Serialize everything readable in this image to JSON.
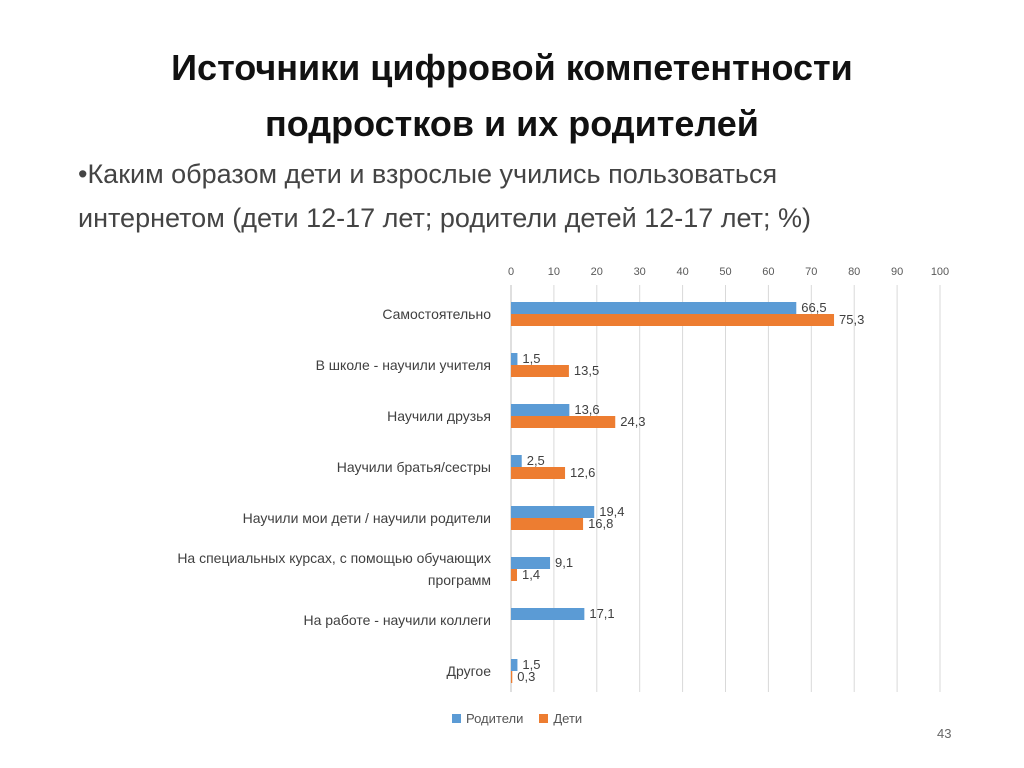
{
  "slide": {
    "title_line1": "Источники цифровой компетентности",
    "title_line2": "подростков и их родителей",
    "bullet_line1": "•Каким образом дети и взрослые учились пользоваться",
    "bullet_line2": "интернетом (дети 12-17 лет; родители детей 12-17 лет; %)",
    "page_number": "43"
  },
  "colors": {
    "parents": "#5b9bd5",
    "children": "#ed7d31",
    "grid": "#d9d9d9",
    "tick_text": "#595959",
    "category_text": "#404040"
  },
  "chart_data": {
    "type": "bar",
    "orientation": "horizontal",
    "categories": [
      [
        "Самостоятельно"
      ],
      [
        "В школе - научили учителя"
      ],
      [
        "Научили друзья"
      ],
      [
        "Научили братья/сестры"
      ],
      [
        "Научили мои дети / научили родители"
      ],
      [
        "На специальных курсах, с помощью обучающих",
        "программ"
      ],
      [
        "На работе  - научили коллеги"
      ],
      [
        "Другое"
      ]
    ],
    "series": [
      {
        "name": "Родители",
        "color": "#5b9bd5",
        "values": [
          66.5,
          1.5,
          13.6,
          2.5,
          19.4,
          9.1,
          17.1,
          1.5
        ],
        "labels": [
          "66,5",
          "1,5",
          "13,6",
          "2,5",
          "19,4",
          "9,1",
          "17,1",
          "1,5"
        ]
      },
      {
        "name": "Дети",
        "color": "#ed7d31",
        "values": [
          75.3,
          13.5,
          24.3,
          12.6,
          16.8,
          1.4,
          null,
          0.3
        ],
        "labels": [
          "75,3",
          "13,5",
          "24,3",
          "12,6",
          "16,8",
          "1,4",
          null,
          "0,3"
        ]
      }
    ],
    "xlim": [
      0,
      100
    ],
    "xticks": [
      "0",
      "10",
      "20",
      "30",
      "40",
      "50",
      "60",
      "70",
      "80",
      "90",
      "100"
    ],
    "xaxis_position": "top",
    "grid": true,
    "legend_position": "bottom",
    "xlabel": "",
    "ylabel": ""
  }
}
